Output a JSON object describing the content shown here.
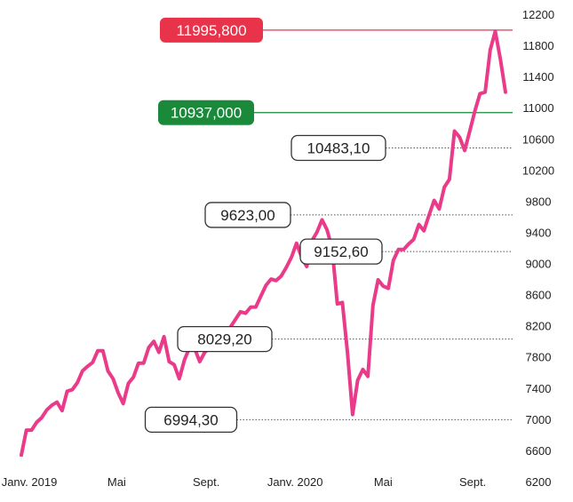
{
  "chart_data": {
    "type": "line",
    "title": "",
    "xlabel": "",
    "ylabel": "",
    "ylim": [
      6200,
      12200
    ],
    "y_ticks": [
      6200,
      6600,
      7000,
      7400,
      7800,
      8200,
      8600,
      9000,
      9400,
      9800,
      10200,
      10600,
      11000,
      11400,
      11800,
      12200
    ],
    "x_tick_labels": [
      {
        "label": "Janv. 2019",
        "x": "2019-01"
      },
      {
        "label": "Mai",
        "x": "2019-05"
      },
      {
        "label": "Sept.",
        "x": "2019-09"
      },
      {
        "label": "Janv. 2020",
        "x": "2020-01"
      },
      {
        "label": "Mai",
        "x": "2020-05"
      },
      {
        "label": "Sept.",
        "x": "2020-09"
      }
    ],
    "grid": false,
    "colors": {
      "line": "#ea3a8a",
      "resistance": "#e8334a",
      "support": "#1a8a3a",
      "guide": "#555555"
    },
    "series": [
      {
        "x": [
          "2018-12-21",
          "2018-12-28",
          "2019-01-04",
          "2019-01-11",
          "2019-01-18",
          "2019-01-25",
          "2019-02-01",
          "2019-02-08",
          "2019-02-15",
          "2019-02-22",
          "2019-03-01",
          "2019-03-08",
          "2019-03-15",
          "2019-03-22",
          "2019-03-29",
          "2019-04-05",
          "2019-04-12",
          "2019-04-19",
          "2019-04-26",
          "2019-05-03",
          "2019-05-10",
          "2019-05-17",
          "2019-05-24",
          "2019-05-31",
          "2019-06-07",
          "2019-06-14",
          "2019-06-21",
          "2019-06-28",
          "2019-07-05",
          "2019-07-12",
          "2019-07-19",
          "2019-07-26",
          "2019-08-02",
          "2019-08-09",
          "2019-08-16",
          "2019-08-23",
          "2019-08-30",
          "2019-09-06",
          "2019-09-13",
          "2019-09-20",
          "2019-09-27",
          "2019-10-04",
          "2019-10-11",
          "2019-10-18",
          "2019-10-25",
          "2019-11-01",
          "2019-11-08",
          "2019-11-15",
          "2019-11-22",
          "2019-11-29",
          "2019-12-06",
          "2019-12-13",
          "2019-12-20",
          "2019-12-27",
          "2020-01-03",
          "2020-01-10",
          "2020-01-17",
          "2020-01-24",
          "2020-01-31",
          "2020-02-07",
          "2020-02-14",
          "2020-02-21",
          "2020-02-28",
          "2020-03-06",
          "2020-03-13",
          "2020-03-20",
          "2020-03-27",
          "2020-04-03",
          "2020-04-10",
          "2020-04-17",
          "2020-04-24",
          "2020-05-01",
          "2020-05-08",
          "2020-05-15",
          "2020-05-22",
          "2020-05-29",
          "2020-06-05",
          "2020-06-12",
          "2020-06-19",
          "2020-06-26",
          "2020-07-03",
          "2020-07-10",
          "2020-07-17",
          "2020-07-24",
          "2020-07-31",
          "2020-08-07",
          "2020-08-14",
          "2020-08-21",
          "2020-08-28",
          "2020-09-04",
          "2020-09-11",
          "2020-09-18",
          "2020-09-25",
          "2020-10-02",
          "2020-10-09",
          "2020-10-16"
        ],
        "values": [
          6540,
          6860,
          6860,
          6960,
          7020,
          7120,
          7180,
          7220,
          7110,
          7360,
          7380,
          7470,
          7620,
          7680,
          7730,
          7880,
          7880,
          7620,
          7520,
          7340,
          7200,
          7460,
          7540,
          7720,
          7720,
          7920,
          8000,
          7860,
          8060,
          7740,
          7700,
          7520,
          7760,
          7920,
          7910,
          7740,
          7860,
          7920,
          7980,
          8080,
          8080,
          8180,
          8280,
          8380,
          8360,
          8440,
          8440,
          8580,
          8720,
          8800,
          8780,
          8840,
          8950,
          9080,
          9260,
          9080,
          8960,
          9290,
          9400,
          9560,
          9430,
          9190,
          8480,
          8500,
          7850,
          7060,
          7500,
          7640,
          7550,
          8460,
          8790,
          8710,
          8680,
          9040,
          9180,
          9180,
          9250,
          9310,
          9500,
          9420,
          9620,
          9810,
          9700,
          9980,
          10080,
          10700,
          10620,
          10450,
          10700,
          10960,
          11180,
          11200,
          11740,
          11980,
          11620,
          11200
        ]
      }
    ],
    "annotations": {
      "resistance": {
        "label": "11995,800",
        "value": 11995.8
      },
      "support": {
        "label": "10937,000",
        "value": 10937.0
      },
      "levels": [
        {
          "label": "10483,10",
          "value": 10483.1
        },
        {
          "label": "9623,00",
          "value": 9623.0
        },
        {
          "label": "9152,60",
          "value": 9152.6
        },
        {
          "label": "8029,20",
          "value": 8029.2
        },
        {
          "label": "6994,30",
          "value": 6994.3
        }
      ]
    }
  }
}
